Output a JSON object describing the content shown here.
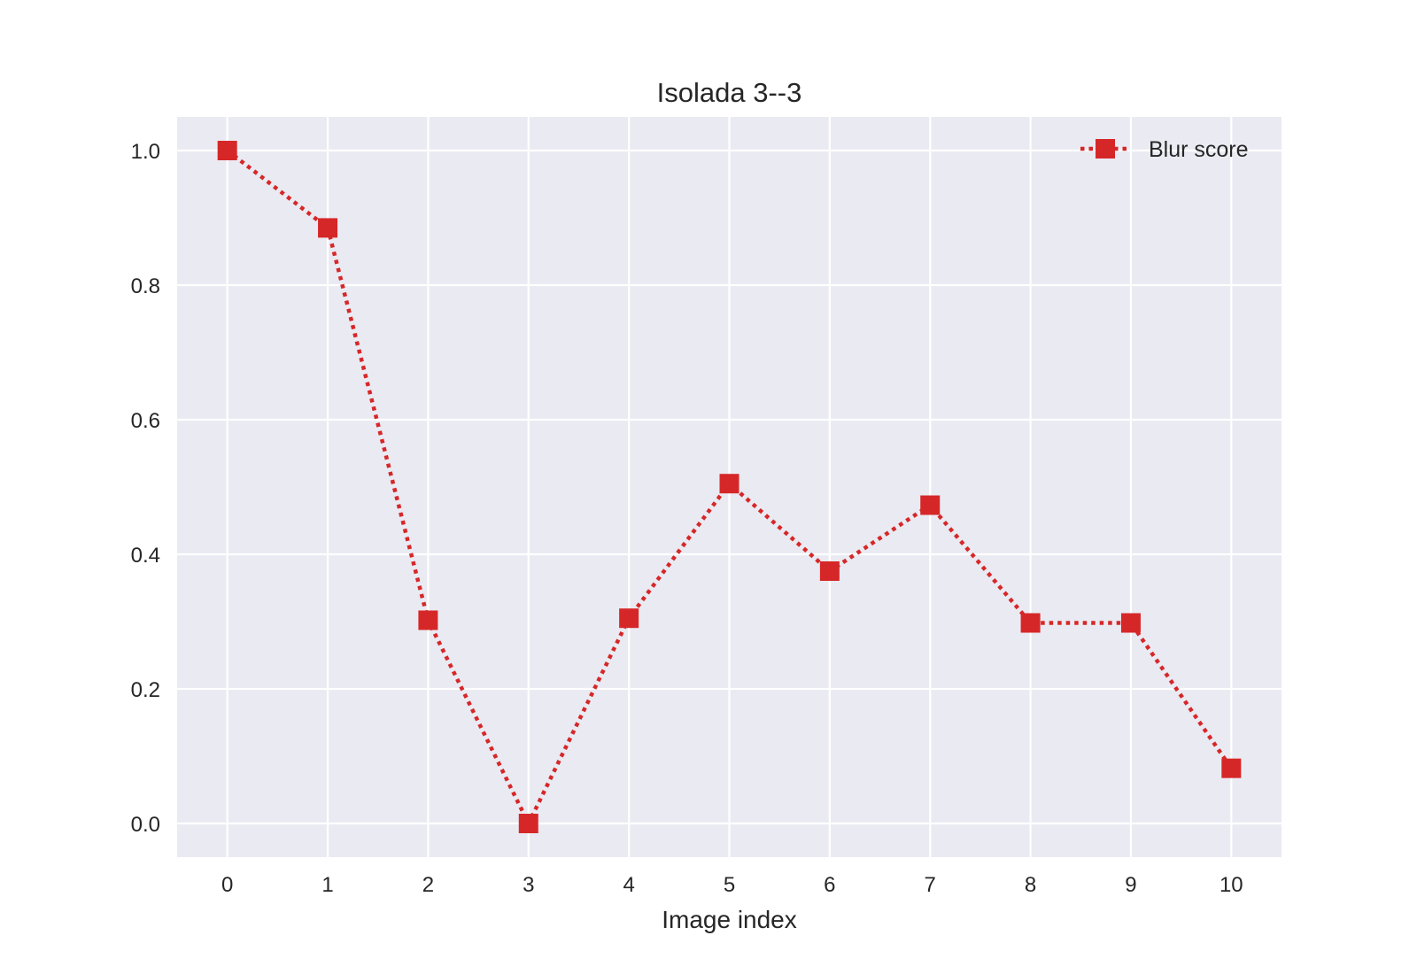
{
  "chart_data": {
    "type": "line",
    "title": "Isolada 3--3",
    "xlabel": "Image index",
    "ylabel": "",
    "x": [
      0,
      1,
      2,
      3,
      4,
      5,
      6,
      7,
      8,
      9,
      10
    ],
    "series": [
      {
        "name": "Blur score",
        "values": [
          1.0,
          0.885,
          0.302,
          0.0,
          0.305,
          0.505,
          0.375,
          0.473,
          0.298,
          0.298,
          0.082
        ],
        "color": "#d62728",
        "line_style": "dotted",
        "marker": "square"
      }
    ],
    "xticks": [
      0,
      1,
      2,
      3,
      4,
      5,
      6,
      7,
      8,
      9,
      10
    ],
    "xtick_labels": [
      "0",
      "1",
      "2",
      "3",
      "4",
      "5",
      "6",
      "7",
      "8",
      "9",
      "10"
    ],
    "yticks": [
      0.0,
      0.2,
      0.4,
      0.6,
      0.8,
      1.0
    ],
    "ytick_labels": [
      "0.0",
      "0.2",
      "0.4",
      "0.6",
      "0.8",
      "1.0"
    ],
    "xlim": [
      -0.5,
      10.5
    ],
    "ylim": [
      -0.05,
      1.05
    ],
    "grid": true,
    "legend_position": "top-right",
    "background_color": "#eaeaf2",
    "grid_color": "#ffffff"
  }
}
